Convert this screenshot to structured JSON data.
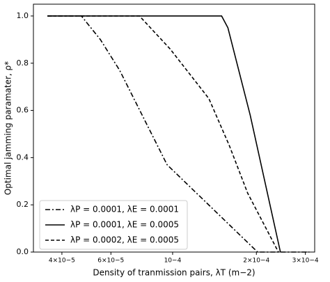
{
  "chart_data": {
    "type": "line",
    "xlabel": "Density of tranmission pairs, λT (m−2)",
    "ylabel": "Optimal jamming paramater, ρ*",
    "xscale": "log",
    "xlim": [
      3.16e-05,
      0.000324
    ],
    "ylim": [
      0,
      1.05
    ],
    "xticks": [
      {
        "value": 4e-05,
        "label": "4×10−5"
      },
      {
        "value": 6e-05,
        "label": "6×10−5"
      },
      {
        "value": 0.0001,
        "label": "10−4"
      },
      {
        "value": 0.0002,
        "label": "2×10−4"
      },
      {
        "value": 0.0003,
        "label": "3×10−4"
      }
    ],
    "yticks": [
      {
        "value": 0,
        "label": "0.0"
      },
      0.2,
      0.4,
      0.6,
      0.8,
      {
        "value": 1,
        "label": "1.0"
      }
    ],
    "legend": "lower left",
    "series": [
      {
        "name": "λP = 0.0001, λE = 0.0001",
        "color": "#000000",
        "dash": "dashdot",
        "x": [
          3.55e-05,
          4.7e-05,
          5.5e-05,
          6.45e-05,
          9.55e-05,
          0.000202,
          0.00031
        ],
        "values": [
          1.0,
          1.0,
          0.9,
          0.77,
          0.37,
          0.0,
          0.0
        ]
      },
      {
        "name": "λP = 0.0001, λE = 0.0005",
        "color": "#000000",
        "dash": "solid",
        "x": [
          3.55e-05,
          0.00015,
          0.000158,
          0.00019,
          0.000244
        ],
        "values": [
          1.0,
          1.0,
          0.95,
          0.58,
          0.0
        ]
      },
      {
        "name": "λP = 0.0002, λE = 0.0005",
        "color": "#000000",
        "dash": "dashed",
        "x": [
          3.55e-05,
          7.6e-05,
          9.8e-05,
          0.000135,
          0.00016,
          0.000186,
          0.00024
        ],
        "values": [
          1.0,
          1.0,
          0.86,
          0.65,
          0.45,
          0.25,
          0.0
        ]
      }
    ]
  }
}
